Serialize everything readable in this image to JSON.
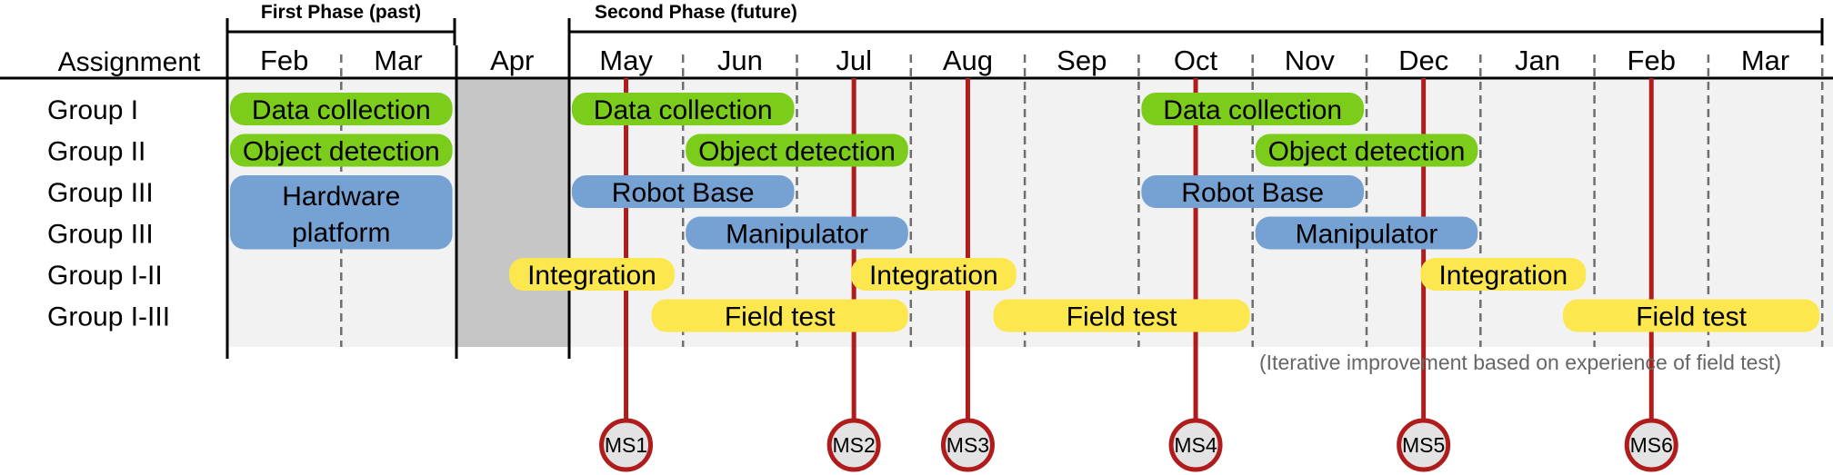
{
  "header": {
    "assignment_label": "Assignment",
    "phase1_label": "First Phase (past)",
    "phase2_label": "Second Phase (future)"
  },
  "months": [
    "Feb",
    "Mar",
    "Apr",
    "May",
    "Jun",
    "Jul",
    "Aug",
    "Sep",
    "Oct",
    "Nov",
    "Dec",
    "Jan",
    "Feb",
    "Mar"
  ],
  "rows": [
    "Group I",
    "Group II",
    "Group III",
    "Group III",
    "Group I-II",
    "Group I-III"
  ],
  "colors": {
    "green": "#7ccc1c",
    "blue": "#76a1d3",
    "yellow": "#fce74f",
    "milestone_line": "#b01c1c",
    "milestone_fill": "#e3e3e3",
    "gap_shade": "#c6c6c6",
    "chart_bg": "#f2f2f2"
  },
  "bars": [
    {
      "label": "Data collection",
      "row": 0,
      "start": 0.0,
      "end": 2.0,
      "color": "green"
    },
    {
      "label": "Data collection",
      "row": 0,
      "start": 3.0,
      "end": 5.0,
      "color": "green"
    },
    {
      "label": "Data collection",
      "row": 0,
      "start": 8.0,
      "end": 10.0,
      "color": "green"
    },
    {
      "label": "Object detection",
      "row": 1,
      "start": 0.0,
      "end": 2.0,
      "color": "green"
    },
    {
      "label": "Object detection",
      "row": 1,
      "start": 4.0,
      "end": 6.0,
      "color": "green"
    },
    {
      "label": "Object detection",
      "row": 1,
      "start": 9.0,
      "end": 11.0,
      "color": "green"
    },
    {
      "label": "Hardware platform",
      "row": 2,
      "rows": 2,
      "start": 0.0,
      "end": 2.0,
      "color": "blue"
    },
    {
      "label": "Robot Base",
      "row": 2,
      "start": 3.0,
      "end": 5.0,
      "color": "blue"
    },
    {
      "label": "Robot Base",
      "row": 2,
      "start": 8.0,
      "end": 10.0,
      "color": "blue"
    },
    {
      "label": "Manipulator",
      "row": 3,
      "start": 4.0,
      "end": 6.0,
      "color": "blue"
    },
    {
      "label": "Manipulator",
      "row": 3,
      "start": 9.0,
      "end": 11.0,
      "color": "blue"
    },
    {
      "label": "Integration",
      "row": 4,
      "start": 2.45,
      "end": 3.95,
      "color": "yellow"
    },
    {
      "label": "Integration",
      "row": 4,
      "start": 5.45,
      "end": 6.95,
      "color": "yellow"
    },
    {
      "label": "Integration",
      "row": 4,
      "start": 10.45,
      "end": 11.95,
      "color": "yellow"
    },
    {
      "label": "Field test",
      "row": 5,
      "start": 3.7,
      "end": 6.0,
      "color": "yellow"
    },
    {
      "label": "Field test",
      "row": 5,
      "start": 6.7,
      "end": 9.0,
      "color": "yellow"
    },
    {
      "label": "Field test",
      "row": 5,
      "start": 11.7,
      "end": 14.0,
      "color": "yellow"
    }
  ],
  "milestones": [
    {
      "label": "MS1",
      "at": 3.5
    },
    {
      "label": "MS2",
      "at": 5.5
    },
    {
      "label": "MS3",
      "at": 6.5
    },
    {
      "label": "MS4",
      "at": 8.5
    },
    {
      "label": "MS5",
      "at": 10.5
    },
    {
      "label": "MS6",
      "at": 12.5
    }
  ],
  "note": "(Iterative improvement based on experience of field test)"
}
